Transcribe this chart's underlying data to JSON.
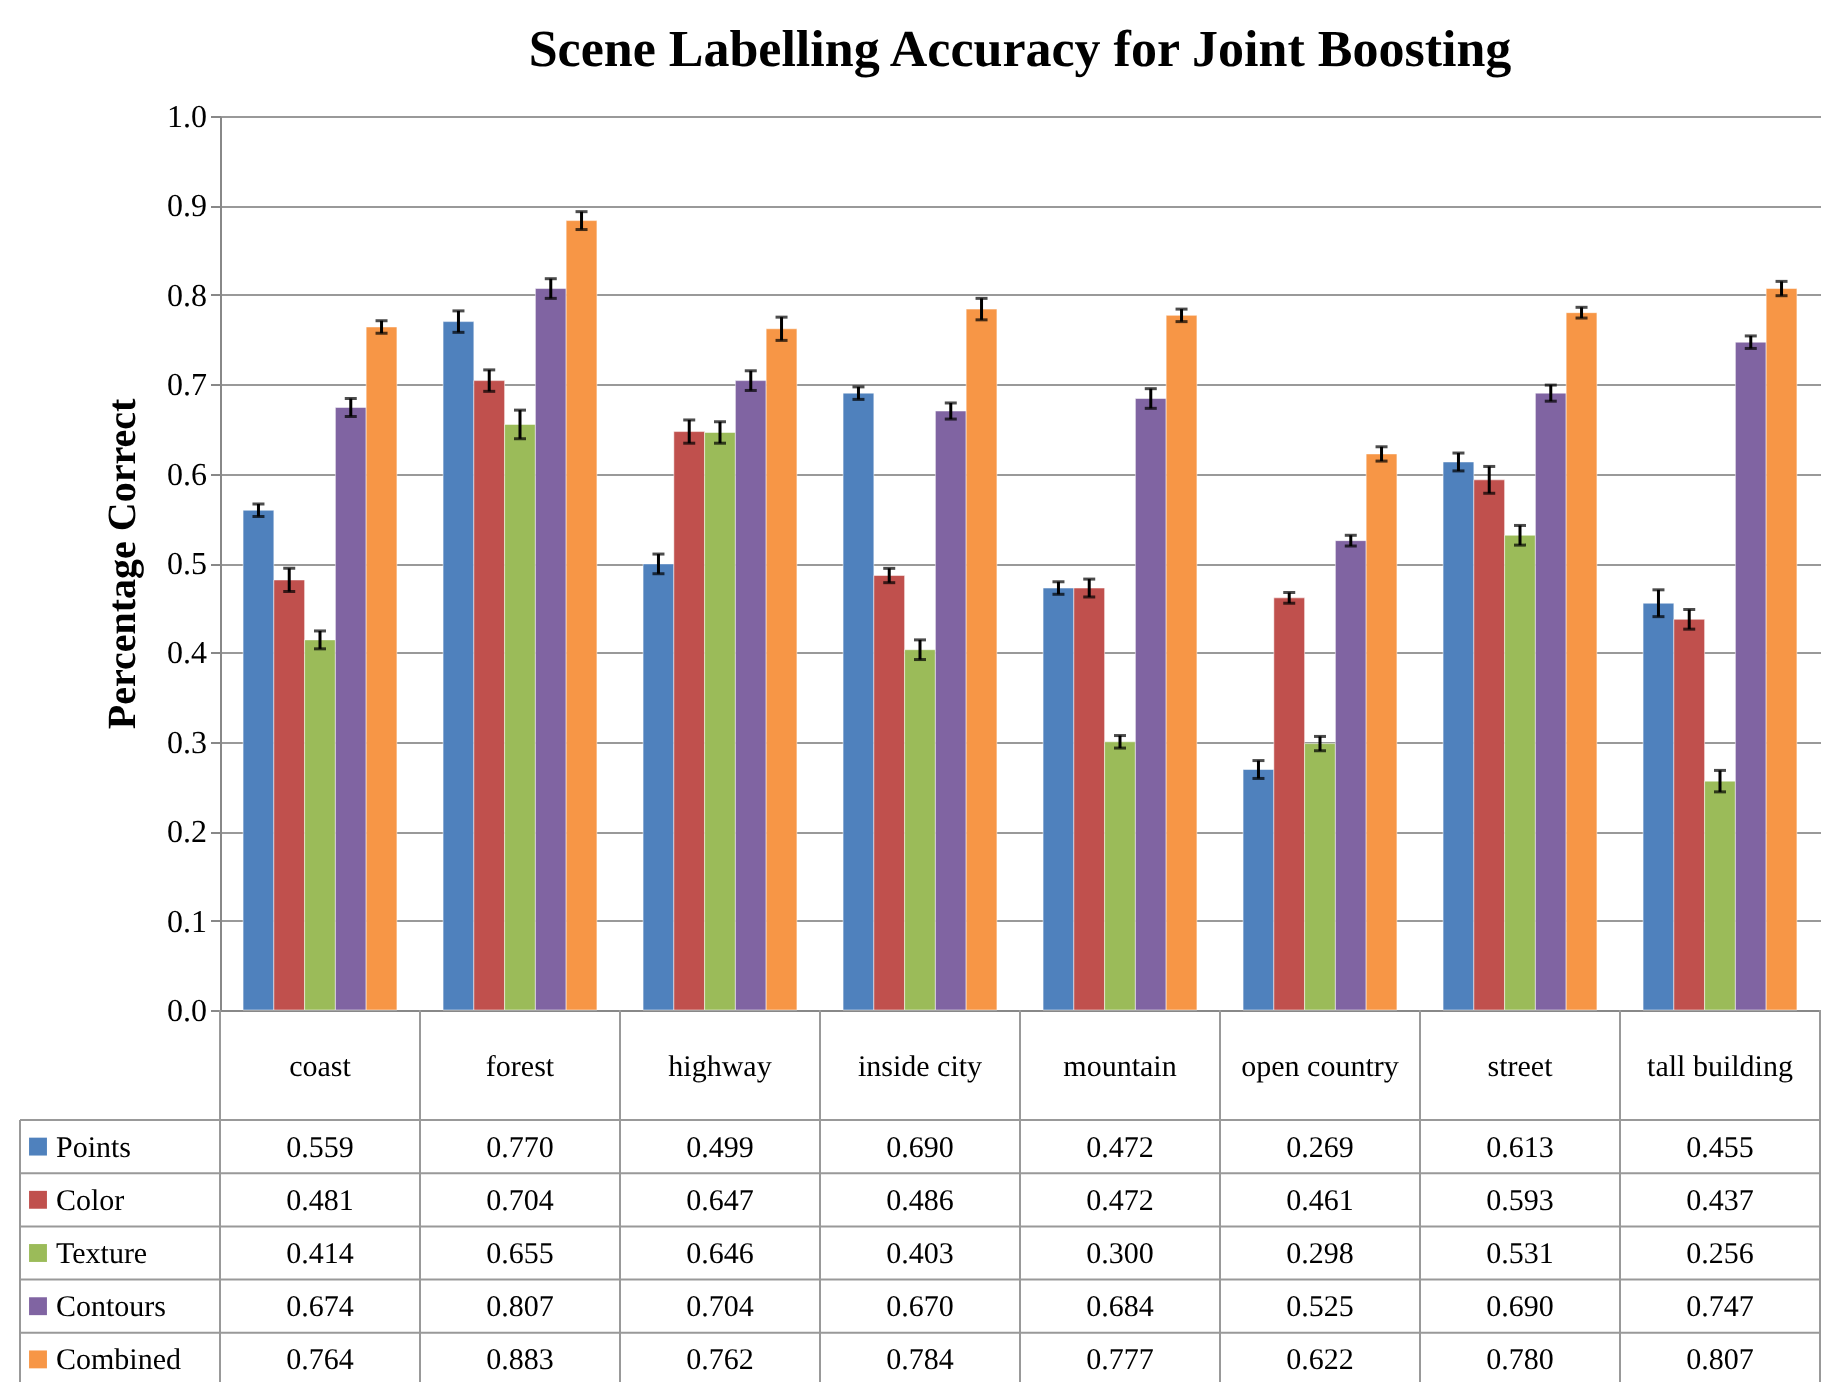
{
  "chart_data": {
    "type": "bar",
    "title": "Scene Labelling Accuracy for Joint Boosting",
    "ylabel": "Percentage Correct",
    "categories": [
      "coast",
      "forest",
      "highway",
      "inside city",
      "mountain",
      "open country",
      "street",
      "tall building"
    ],
    "series": [
      {
        "name": "Points",
        "color": "#4f81bd",
        "values": [
          0.559,
          0.77,
          0.499,
          0.69,
          0.472,
          0.269,
          0.613,
          0.455
        ],
        "value_labels": [
          "0.559",
          "0.770",
          "0.499",
          "0.690",
          "0.472",
          "0.269",
          "0.613",
          "0.455"
        ],
        "errors": [
          0.007,
          0.012,
          0.011,
          0.007,
          0.007,
          0.01,
          0.01,
          0.015
        ]
      },
      {
        "name": "Color",
        "color": "#c0504d",
        "values": [
          0.481,
          0.704,
          0.647,
          0.486,
          0.472,
          0.461,
          0.593,
          0.437
        ],
        "value_labels": [
          "0.481",
          "0.704",
          "0.647",
          "0.486",
          "0.472",
          "0.461",
          "0.593",
          "0.437"
        ],
        "errors": [
          0.013,
          0.012,
          0.013,
          0.008,
          0.01,
          0.006,
          0.015,
          0.011
        ]
      },
      {
        "name": "Texture",
        "color": "#9bbb59",
        "values": [
          0.414,
          0.655,
          0.646,
          0.403,
          0.3,
          0.298,
          0.531,
          0.256
        ],
        "value_labels": [
          "0.414",
          "0.655",
          "0.646",
          "0.403",
          "0.300",
          "0.298",
          "0.531",
          "0.256"
        ],
        "errors": [
          0.01,
          0.016,
          0.012,
          0.011,
          0.007,
          0.008,
          0.011,
          0.012
        ]
      },
      {
        "name": "Contours",
        "color": "#8064a2",
        "values": [
          0.674,
          0.807,
          0.704,
          0.67,
          0.684,
          0.525,
          0.69,
          0.747
        ],
        "value_labels": [
          "0.674",
          "0.807",
          "0.704",
          "0.670",
          "0.684",
          "0.525",
          "0.690",
          "0.747"
        ],
        "errors": [
          0.01,
          0.011,
          0.011,
          0.009,
          0.011,
          0.006,
          0.009,
          0.007
        ]
      },
      {
        "name": "Combined",
        "color": "#f79646",
        "values": [
          0.764,
          0.883,
          0.762,
          0.784,
          0.777,
          0.622,
          0.78,
          0.807
        ],
        "value_labels": [
          "0.764",
          "0.883",
          "0.762",
          "0.784",
          "0.777",
          "0.622",
          "0.780",
          "0.807"
        ],
        "errors": [
          0.007,
          0.01,
          0.013,
          0.012,
          0.007,
          0.008,
          0.006,
          0.008
        ]
      }
    ],
    "ylim": [
      0,
      1
    ],
    "yticks": [
      {
        "value": 0,
        "label": "0.0"
      },
      {
        "value": 0.1,
        "label": "0.1"
      },
      {
        "value": 0.2,
        "label": "0.2"
      },
      {
        "value": 0.3,
        "label": "0.3"
      },
      {
        "value": 0.4,
        "label": "0.4"
      },
      {
        "value": 0.5,
        "label": "0.5"
      },
      {
        "value": 0.6,
        "label": "0.6"
      },
      {
        "value": 0.7,
        "label": "0.7"
      },
      {
        "value": 0.8,
        "label": "0.8"
      },
      {
        "value": 0.9,
        "label": "0.9"
      },
      {
        "value": 1,
        "label": "1.0"
      }
    ],
    "grid": "y",
    "legend": "bottom"
  }
}
